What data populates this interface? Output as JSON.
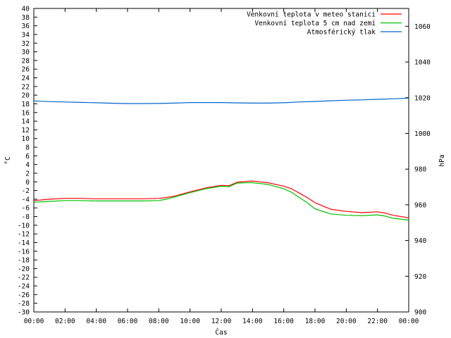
{
  "chart_data": {
    "type": "line",
    "title": "",
    "xlabel": "Čas",
    "ylabel": "°C",
    "y2label": "hPa",
    "x_ticks": [
      "00:00",
      "02:00",
      "04:00",
      "06:00",
      "08:00",
      "10:00",
      "12:00",
      "14:00",
      "16:00",
      "18:00",
      "20:00",
      "22:00",
      "00:00"
    ],
    "x_hours": [
      0,
      24
    ],
    "ylim": [
      -30,
      40
    ],
    "y_step": 2,
    "y2lim": [
      900,
      1070
    ],
    "y2_ticks": [
      900,
      920,
      940,
      960,
      980,
      1000,
      1020,
      1040,
      1060
    ],
    "grid": false,
    "legend_position": "top-right",
    "series": [
      {
        "name": "Venkovní teplota v meteo stanici",
        "axis": "left",
        "color": "#ff0000",
        "x": [
          0,
          1,
          2,
          3,
          4,
          5,
          6,
          7,
          8,
          8.5,
          9,
          10,
          11,
          12,
          12.5,
          13,
          13.5,
          14,
          14.5,
          15,
          16,
          16.5,
          17,
          17.5,
          18,
          19,
          20,
          21,
          22,
          22.5,
          23,
          24
        ],
        "y": [
          -4.3,
          -4.0,
          -3.8,
          -3.8,
          -3.9,
          -3.9,
          -3.9,
          -3.9,
          -3.8,
          -3.6,
          -3.3,
          -2.3,
          -1.4,
          -0.8,
          -0.9,
          -0.1,
          0.1,
          0.2,
          0.0,
          -0.2,
          -1.0,
          -1.6,
          -2.6,
          -3.6,
          -4.8,
          -6.3,
          -6.8,
          -7.1,
          -6.9,
          -7.2,
          -7.7,
          -8.3
        ]
      },
      {
        "name": "Venkovní teplota 5 cm nad zemí",
        "axis": "left",
        "color": "#00c000",
        "x": [
          0,
          1,
          2,
          3,
          4,
          5,
          6,
          7,
          8,
          8.5,
          9,
          10,
          11,
          12,
          12.5,
          13,
          13.5,
          14,
          14.5,
          15,
          16,
          16.5,
          17,
          17.5,
          18,
          19,
          20,
          21,
          22,
          22.5,
          23,
          24
        ],
        "y": [
          -4.7,
          -4.5,
          -4.3,
          -4.3,
          -4.4,
          -4.4,
          -4.4,
          -4.4,
          -4.3,
          -4.0,
          -3.5,
          -2.5,
          -1.6,
          -1.0,
          -1.1,
          -0.3,
          -0.2,
          -0.2,
          -0.4,
          -0.6,
          -1.6,
          -2.4,
          -3.6,
          -4.8,
          -6.2,
          -7.4,
          -7.7,
          -7.8,
          -7.6,
          -7.9,
          -8.4,
          -8.8
        ]
      },
      {
        "name": "Atmosférický tlak",
        "axis": "right",
        "color": "#0066cc",
        "x": [
          0,
          1,
          2,
          3,
          4,
          5,
          6,
          7,
          8,
          9,
          10,
          11,
          12,
          13,
          14,
          15,
          16,
          17,
          18,
          19,
          20,
          21,
          22,
          23,
          24
        ],
        "y": [
          1018.2,
          1017.8,
          1017.6,
          1017.4,
          1017.2,
          1016.9,
          1016.7,
          1016.7,
          1016.8,
          1017.0,
          1017.3,
          1017.3,
          1017.3,
          1017.1,
          1017.0,
          1017.0,
          1017.2,
          1017.6,
          1017.9,
          1018.3,
          1018.6,
          1018.8,
          1019.1,
          1019.4,
          1019.8
        ]
      }
    ]
  }
}
